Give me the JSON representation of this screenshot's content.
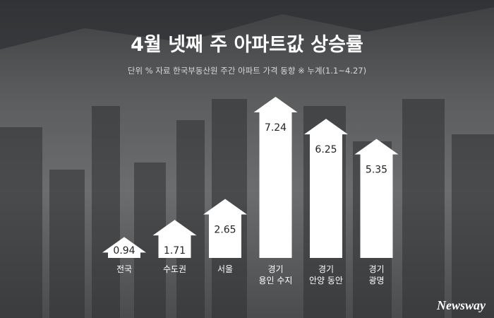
{
  "chart_data": {
    "type": "arrow-bar",
    "title": "4월 넷째 주 아파트값 상승률",
    "subtitle": "단위 %  자료 한국부동산원 주간 아파트 가격 동향  ※ 누계(1.1~4.27)",
    "categories": [
      "전국",
      "수도권",
      "서울",
      "경기\n용인 수지",
      "경기\n안양 동안",
      "경기\n광명"
    ],
    "values": [
      0.94,
      1.71,
      2.65,
      7.24,
      6.25,
      5.35
    ],
    "color": "#ffffff",
    "watermark": "Newsway"
  }
}
